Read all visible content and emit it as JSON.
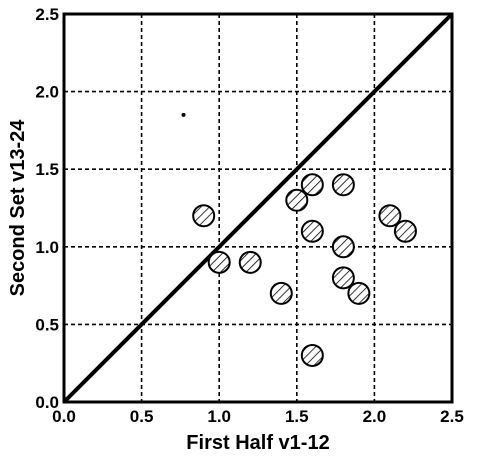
{
  "chart_data": {
    "type": "scatter",
    "title": "",
    "xlabel": "First Half v1-12",
    "ylabel": "Second Set v13-24",
    "xlim": [
      0.0,
      2.5
    ],
    "ylim": [
      0.0,
      2.5
    ],
    "xticks": [
      "0.0",
      "0.5",
      "1.0",
      "1.5",
      "2.0",
      "2.5"
    ],
    "yticks": [
      "0.0",
      "0.5",
      "1.0",
      "1.5",
      "2.0",
      "2.5"
    ],
    "grid": true,
    "grid_style": "dashed",
    "reference_line": {
      "type": "identity",
      "from": [
        0,
        0
      ],
      "to": [
        2.5,
        2.5
      ]
    },
    "marker": "hatched-circle",
    "points": [
      {
        "x": 0.9,
        "y": 1.2
      },
      {
        "x": 1.0,
        "y": 0.9
      },
      {
        "x": 1.2,
        "y": 0.9
      },
      {
        "x": 1.4,
        "y": 0.7
      },
      {
        "x": 1.5,
        "y": 1.3
      },
      {
        "x": 1.6,
        "y": 1.4
      },
      {
        "x": 1.6,
        "y": 1.1
      },
      {
        "x": 1.6,
        "y": 0.3
      },
      {
        "x": 1.8,
        "y": 1.4
      },
      {
        "x": 1.8,
        "y": 1.0
      },
      {
        "x": 1.8,
        "y": 0.8
      },
      {
        "x": 1.9,
        "y": 0.7
      },
      {
        "x": 2.1,
        "y": 1.2
      },
      {
        "x": 2.2,
        "y": 1.1
      }
    ],
    "stray_dot": {
      "x": 0.77,
      "y": 1.85
    }
  }
}
